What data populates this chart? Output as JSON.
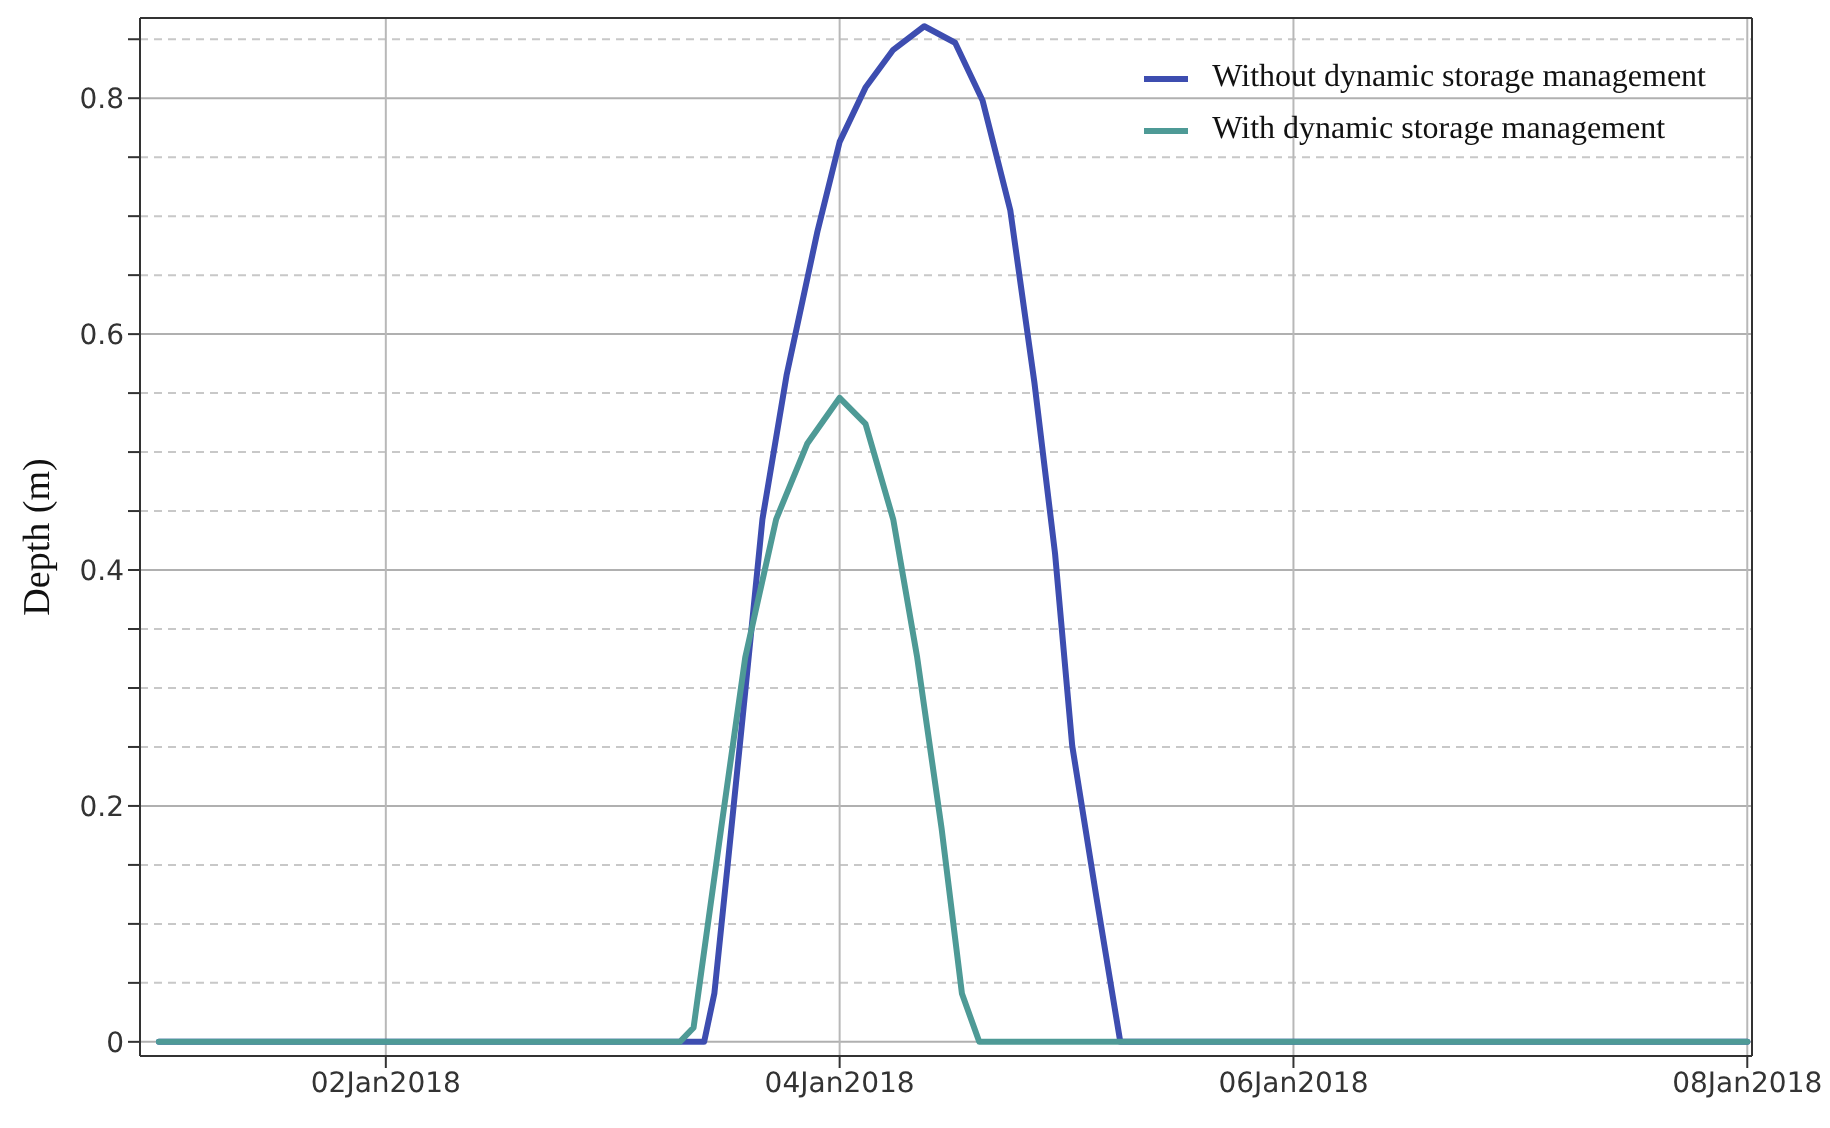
{
  "chart_data": {
    "type": "line",
    "ylabel": "Depth (m)",
    "xlim": [
      "2017-12-31T22:00",
      "2018-01-08T00:30"
    ],
    "xticks": [
      {
        "value": "2018-01-02",
        "label": "02Jan2018"
      },
      {
        "value": "2018-01-04",
        "label": "04Jan2018"
      },
      {
        "value": "2018-01-06",
        "label": "06Jan2018"
      },
      {
        "value": "2018-01-08",
        "label": "08Jan2018"
      }
    ],
    "ylim": [
      -0.012,
      0.868
    ],
    "yticks": [
      0,
      {
        "value": 0.05,
        "label": null
      },
      {
        "value": 0.1,
        "label": null
      },
      {
        "value": 0.15,
        "label": null
      },
      {
        "value": 0.2,
        "label": "0.2"
      },
      {
        "value": 0.25,
        "label": null
      },
      {
        "value": 0.3,
        "label": null
      },
      {
        "value": 0.35,
        "label": null
      },
      {
        "value": 0.4,
        "label": "0.4"
      },
      {
        "value": 0.45,
        "label": null
      },
      {
        "value": 0.5,
        "label": null
      },
      {
        "value": 0.55,
        "label": null
      },
      {
        "value": 0.6,
        "label": "0.6"
      },
      {
        "value": 0.65,
        "label": null
      },
      {
        "value": 0.7,
        "label": null
      },
      {
        "value": 0.75,
        "label": null
      },
      {
        "value": 0.8,
        "label": "0.8"
      },
      {
        "value": 0.85,
        "label": null
      }
    ],
    "grid": true,
    "legend": "top right",
    "marker": "none",
    "line_style": "solid",
    "series": [
      {
        "name": "Without dynamic storage management",
        "color": "#3d4db0",
        "x": [
          "2018-01-01T00:00",
          "2018-01-03T09:40",
          "2018-01-03T10:45",
          "2018-01-03T12:11",
          "2018-01-03T14:01",
          "2018-01-03T15:50",
          "2018-01-03T18:23",
          "2018-01-03T21:39",
          "2018-01-04T00:00",
          "2018-01-04T02:44",
          "2018-01-04T05:40",
          "2018-01-04T08:57",
          "2018-01-04T12:13",
          "2018-01-04T15:07",
          "2018-01-04T18:03",
          "2018-01-04T20:36",
          "2018-01-04T22:47",
          "2018-01-05T00:36",
          "2018-01-05T03:09",
          "2018-01-05T05:41",
          "2018-01-08T00:00"
        ],
        "values": [
          0,
          0,
          0.041,
          0.152,
          0.297,
          0.443,
          0.565,
          0.687,
          0.763,
          0.809,
          0.841,
          0.861,
          0.847,
          0.798,
          0.705,
          0.559,
          0.414,
          0.251,
          0.123,
          0,
          0
        ]
      },
      {
        "name": "With dynamic storage management",
        "color": "#4e9a96",
        "x": [
          "2018-01-01T00:00",
          "2018-01-03T07:06",
          "2018-01-03T08:33",
          "2018-01-03T11:28",
          "2018-01-03T14:01",
          "2018-01-03T17:17",
          "2018-01-03T20:34",
          "2018-01-04T00:00",
          "2018-01-04T02:44",
          "2018-01-04T05:40",
          "2018-01-04T08:12",
          "2018-01-04T10:47",
          "2018-01-04T12:56",
          "2018-01-04T14:46",
          "2018-01-08T00:00"
        ],
        "values": [
          0,
          0,
          0.012,
          0.181,
          0.326,
          0.443,
          0.507,
          0.546,
          0.524,
          0.443,
          0.326,
          0.181,
          0.041,
          0,
          0
        ]
      }
    ]
  }
}
